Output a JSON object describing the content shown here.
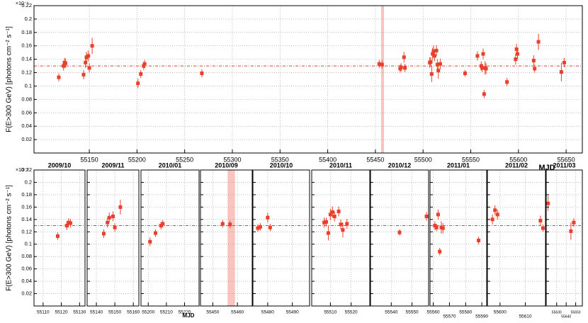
{
  "chart_data": {
    "type": "scatter",
    "y_label": "F(E>300 GeV) [photons cm⁻² s⁻¹]",
    "y_multiplier": "×10⁻⁹",
    "x_label": "MJD",
    "color": "#e8402a",
    "baseline": 0.13,
    "shaded_x": [
      55456,
      55459
    ],
    "ylim": [
      0,
      0.22
    ],
    "yticks": [
      0.02,
      0.04,
      0.06,
      0.08,
      0.1,
      0.12,
      0.14,
      0.16,
      0.18,
      0.2,
      0.22
    ],
    "xlim": [
      55092,
      55667
    ],
    "xticks": [
      55150,
      55200,
      55250,
      55300,
      55350,
      55400,
      55450,
      55500,
      55550,
      55600,
      55650
    ],
    "grid": true,
    "x": [
      55118,
      55123,
      55124,
      55125,
      55144,
      55146,
      55147,
      55149,
      55150,
      55153,
      55201,
      55204,
      55207,
      55208,
      55268,
      55454,
      55457,
      55476,
      55477,
      55480,
      55481,
      55507,
      55508,
      55509,
      55510,
      55511,
      55512,
      55514,
      55515,
      55516,
      55518,
      55544,
      55557,
      55561,
      55562,
      55563,
      55564,
      55565,
      55566,
      55588,
      55597,
      55598,
      55599,
      55616,
      55617,
      55621,
      55645,
      55648
    ],
    "values": [
      0.113,
      0.13,
      0.135,
      0.134,
      0.117,
      0.135,
      0.143,
      0.145,
      0.127,
      0.16,
      0.104,
      0.118,
      0.13,
      0.133,
      0.119,
      0.133,
      0.132,
      0.126,
      0.128,
      0.143,
      0.127,
      0.135,
      0.136,
      0.118,
      0.148,
      0.152,
      0.145,
      0.153,
      0.132,
      0.123,
      0.133,
      0.119,
      0.145,
      0.13,
      0.127,
      0.148,
      0.088,
      0.127,
      0.126,
      0.106,
      0.14,
      0.155,
      0.148,
      0.138,
      0.126,
      0.166,
      0.121,
      0.135
    ],
    "errors": [
      0.006,
      0.007,
      0.007,
      0.007,
      0.007,
      0.008,
      0.008,
      0.008,
      0.007,
      0.012,
      0.007,
      0.006,
      0.006,
      0.006,
      0.006,
      0.006,
      0.006,
      0.006,
      0.006,
      0.008,
      0.006,
      0.008,
      0.007,
      0.012,
      0.009,
      0.009,
      0.008,
      0.008,
      0.008,
      0.012,
      0.008,
      0.005,
      0.007,
      0.007,
      0.006,
      0.008,
      0.006,
      0.01,
      0.008,
      0.006,
      0.008,
      0.008,
      0.008,
      0.008,
      0.006,
      0.012,
      0.014,
      0.007
    ],
    "panels": [
      {
        "title": "2009/10",
        "xlim": [
          55105,
          55133
        ],
        "xticks": [
          55110,
          55120,
          55130
        ]
      },
      {
        "title": "2009/11",
        "xlim": [
          55135,
          55163
        ],
        "xticks": [
          55140,
          55150,
          55160
        ]
      },
      {
        "title": "2010/01",
        "xlim": [
          55196,
          55228
        ],
        "xticks": [
          55200,
          55210,
          55220
        ]
      },
      {
        "title": "2010/09",
        "xlim": [
          55445,
          55466
        ],
        "xticks": [
          55450,
          55460
        ]
      },
      {
        "title": "2010/10",
        "xlim": [
          55474,
          55497
        ],
        "xticks": [
          55480,
          55490
        ]
      },
      {
        "title": "2010/11",
        "xlim": [
          55501,
          55529
        ],
        "xticks": [
          55510,
          55520
        ]
      },
      {
        "title": "2010/12",
        "xlim": [
          55530,
          55558
        ],
        "xticks": [
          55540,
          55550
        ]
      },
      {
        "title": "2011/01",
        "xlim": [
          55558,
          55593
        ],
        "xticks": [
          55560,
          55570,
          55580,
          55590
        ]
      },
      {
        "title": "2011/02",
        "xlim": [
          55595,
          55618
        ],
        "xticks": [
          55600,
          55610
        ]
      },
      {
        "title": "2011/03",
        "xlim": [
          55619,
          55657
        ],
        "xticks": [
          55630,
          55640,
          55650
        ]
      }
    ]
  }
}
